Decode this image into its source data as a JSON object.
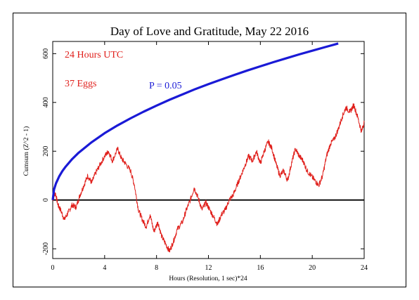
{
  "chart_data": {
    "type": "line",
    "title": "Day of Love and Gratitude, May 22 2016",
    "xlabel": "Hours (Resolution, 1 sec)*24",
    "ylabel": "Cumsum (Z^2 - 1)",
    "xlim": [
      0,
      24
    ],
    "ylim": [
      -240,
      650
    ],
    "xticks": [
      0,
      4,
      8,
      12,
      16,
      20,
      24
    ],
    "yticks": [
      -200,
      0,
      200,
      400,
      600
    ],
    "grid": false,
    "annotations": [
      {
        "text": "24 Hours UTC",
        "color": "#e0201c"
      },
      {
        "text": "37 Eggs",
        "color": "#e0201c"
      },
      {
        "text": "P = 0.05",
        "color": "#1a1ad6"
      }
    ],
    "reference_line": {
      "y": 0,
      "color": "#000000"
    },
    "series": [
      {
        "color": "#e0201c",
        "x": [
          0,
          0.2,
          0.4,
          0.6,
          0.9,
          1.2,
          1.5,
          1.8,
          2.1,
          2.4,
          2.7,
          3.0,
          3.3,
          3.6,
          4.0,
          4.3,
          4.6,
          5.0,
          5.3,
          5.6,
          6.0,
          6.3,
          6.6,
          6.9,
          7.2,
          7.5,
          7.8,
          8.1,
          8.4,
          8.7,
          9.0,
          9.3,
          9.6,
          10.0,
          10.3,
          10.6,
          10.9,
          11.2,
          11.5,
          11.8,
          12.1,
          12.4,
          12.7,
          13.0,
          13.3,
          13.6,
          13.9,
          14.2,
          14.5,
          14.8,
          15.1,
          15.4,
          15.7,
          16.0,
          16.3,
          16.6,
          16.9,
          17.2,
          17.5,
          17.8,
          18.1,
          18.4,
          18.7,
          19.0,
          19.3,
          19.6,
          19.9,
          20.2,
          20.5,
          20.8,
          21.1,
          21.4,
          21.7,
          22.0,
          22.3,
          22.6,
          22.9,
          23.2,
          23.5,
          23.8,
          24.0
        ],
        "y": [
          0,
          30,
          -20,
          -40,
          -80,
          -50,
          -20,
          -30,
          20,
          60,
          100,
          70,
          110,
          140,
          180,
          200,
          160,
          210,
          170,
          150,
          120,
          60,
          -40,
          -80,
          -110,
          -60,
          -130,
          -90,
          -150,
          -180,
          -210,
          -170,
          -120,
          -90,
          -40,
          0,
          50,
          10,
          -40,
          -10,
          -40,
          -70,
          -100,
          -60,
          -40,
          0,
          20,
          60,
          100,
          140,
          180,
          160,
          200,
          150,
          200,
          240,
          210,
          150,
          100,
          120,
          80,
          150,
          210,
          180,
          160,
          120,
          100,
          80,
          60,
          100,
          180,
          230,
          250,
          290,
          340,
          380,
          360,
          390,
          340,
          280,
          320
        ]
      },
      {
        "color": "#1a1ad6",
        "x": [
          0,
          0.1,
          0.25,
          0.5,
          0.75,
          1,
          1.5,
          2,
          3,
          4,
          5,
          6,
          7,
          8,
          9,
          10,
          11,
          12,
          13,
          14,
          15,
          16,
          17,
          18,
          19,
          20,
          21,
          21.9,
          22
        ],
        "y": [
          0,
          43,
          68,
          97,
          119,
          137,
          168,
          194,
          237,
          274,
          306,
          335,
          362,
          387,
          411,
          433,
          455,
          475,
          494,
          513,
          531,
          548,
          565,
          581,
          597,
          612,
          627,
          640,
          642
        ]
      }
    ]
  }
}
